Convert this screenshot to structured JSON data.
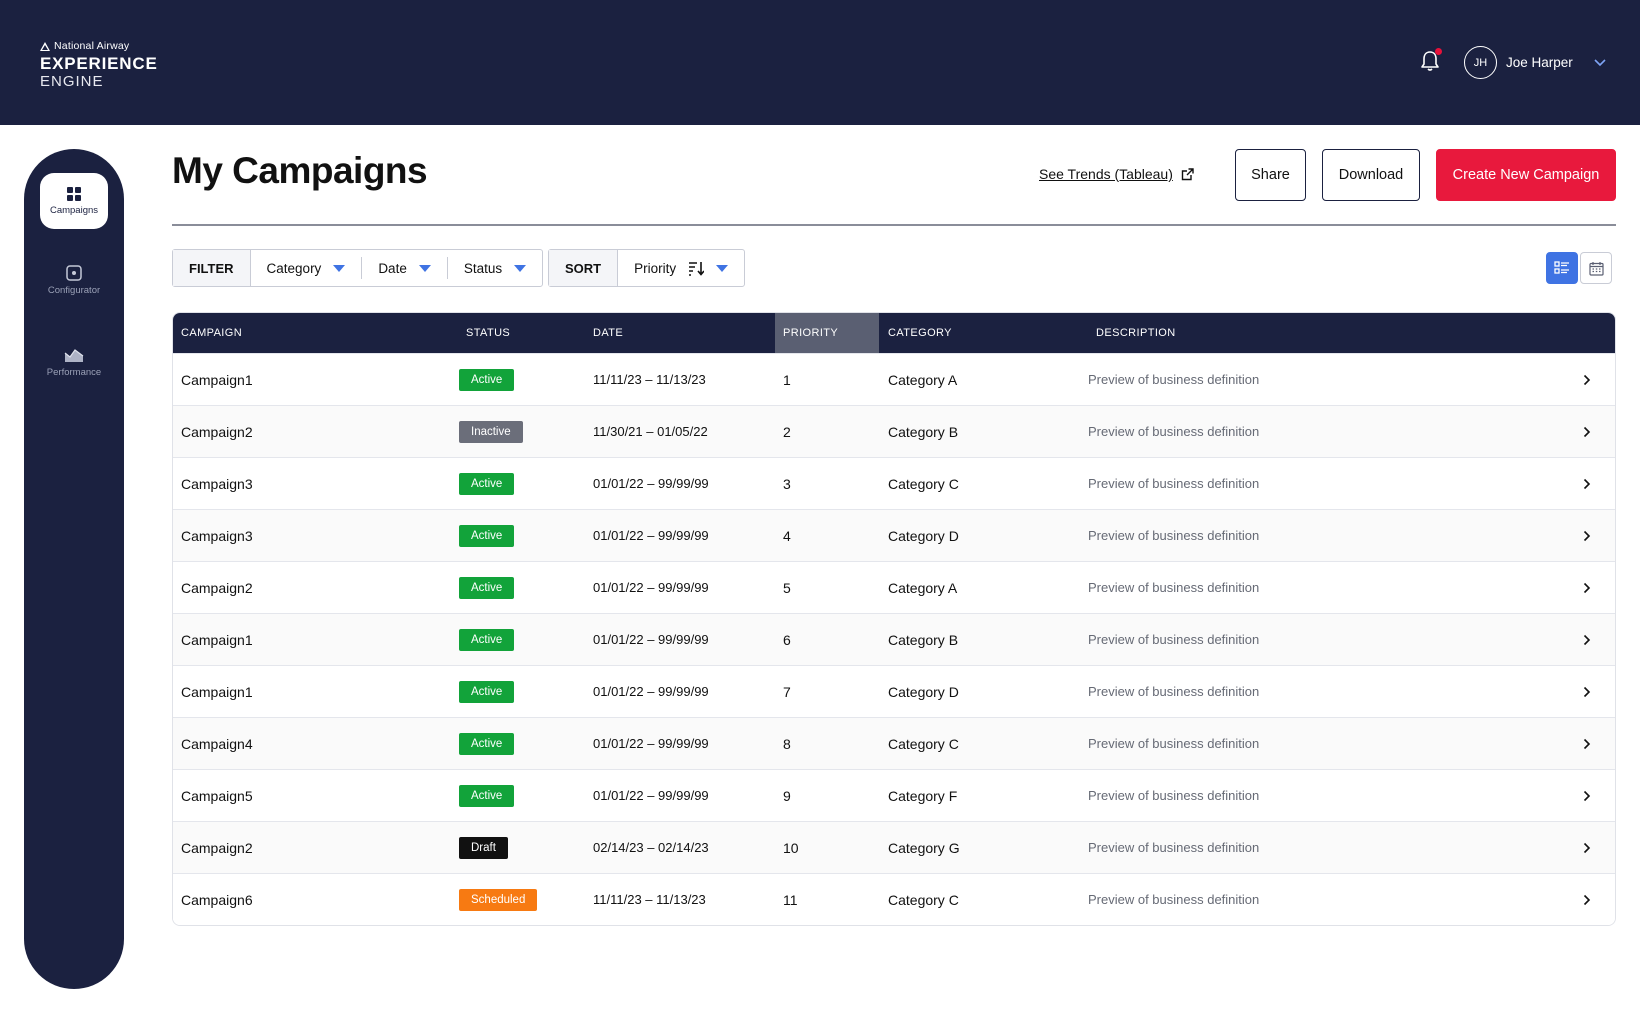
{
  "brand": {
    "small": "National Airway",
    "line1": "EXPERIENCE",
    "line2": "ENGINE"
  },
  "user": {
    "initials": "JH",
    "name": "Joe Harper"
  },
  "sidebar": {
    "items": [
      {
        "label": "Campaigns",
        "icon": "grid-icon",
        "active": true
      },
      {
        "label": "Configurator",
        "icon": "configurator-icon",
        "active": false
      },
      {
        "label": "Performance",
        "icon": "performance-icon",
        "active": false
      }
    ]
  },
  "header": {
    "title": "My Campaigns",
    "trends_link": "See Trends (Tableau)",
    "share_label": "Share",
    "download_label": "Download",
    "create_label": "Create New Campaign"
  },
  "filter": {
    "label": "FILTER",
    "items": [
      "Category",
      "Date",
      "Status"
    ]
  },
  "sort": {
    "label": "SORT",
    "value": "Priority"
  },
  "table": {
    "columns": [
      "CAMPAIGN",
      "STATUS",
      "DATE",
      "PRIORITY",
      "CATEGORY",
      "DESCRIPTION"
    ],
    "rows": [
      {
        "campaign": "Campaign1",
        "status": "Active",
        "date": "11/11/23 – 11/13/23",
        "priority": "1",
        "category": "Category A",
        "description": "Preview of business definition"
      },
      {
        "campaign": "Campaign2",
        "status": "Inactive",
        "date": "11/30/21 – 01/05/22",
        "priority": "2",
        "category": "Category B",
        "description": "Preview of business definition"
      },
      {
        "campaign": "Campaign3",
        "status": "Active",
        "date": "01/01/22 – 99/99/99",
        "priority": "3",
        "category": "Category C",
        "description": "Preview of business definition"
      },
      {
        "campaign": "Campaign3",
        "status": "Active",
        "date": "01/01/22 – 99/99/99",
        "priority": "4",
        "category": "Category D",
        "description": "Preview of business definition"
      },
      {
        "campaign": "Campaign2",
        "status": "Active",
        "date": "01/01/22 – 99/99/99",
        "priority": "5",
        "category": "Category A",
        "description": "Preview of business definition"
      },
      {
        "campaign": "Campaign1",
        "status": "Active",
        "date": "01/01/22 – 99/99/99",
        "priority": "6",
        "category": "Category B",
        "description": "Preview of business definition"
      },
      {
        "campaign": "Campaign1",
        "status": "Active",
        "date": "01/01/22 – 99/99/99",
        "priority": "7",
        "category": "Category D",
        "description": "Preview of business definition"
      },
      {
        "campaign": "Campaign4",
        "status": "Active",
        "date": "01/01/22 – 99/99/99",
        "priority": "8",
        "category": "Category C",
        "description": "Preview of business definition"
      },
      {
        "campaign": "Campaign5",
        "status": "Active",
        "date": "01/01/22 – 99/99/99",
        "priority": "9",
        "category": "Category F",
        "description": "Preview of business definition"
      },
      {
        "campaign": "Campaign2",
        "status": "Draft",
        "date": "02/14/23 – 02/14/23",
        "priority": "10",
        "category": "Category G",
        "description": "Preview of business definition"
      },
      {
        "campaign": "Campaign6",
        "status": "Scheduled",
        "date": "11/11/23 – 11/13/23",
        "priority": "11",
        "category": "Category C",
        "description": "Preview of business definition"
      }
    ]
  },
  "status_colors": {
    "Active": "#12a33a",
    "Inactive": "#6b6e7a",
    "Draft": "#111111",
    "Scheduled": "#f77a12"
  },
  "colors": {
    "navy": "#1b2140",
    "accent_red": "#e8193d",
    "accent_blue": "#3f73e3"
  }
}
